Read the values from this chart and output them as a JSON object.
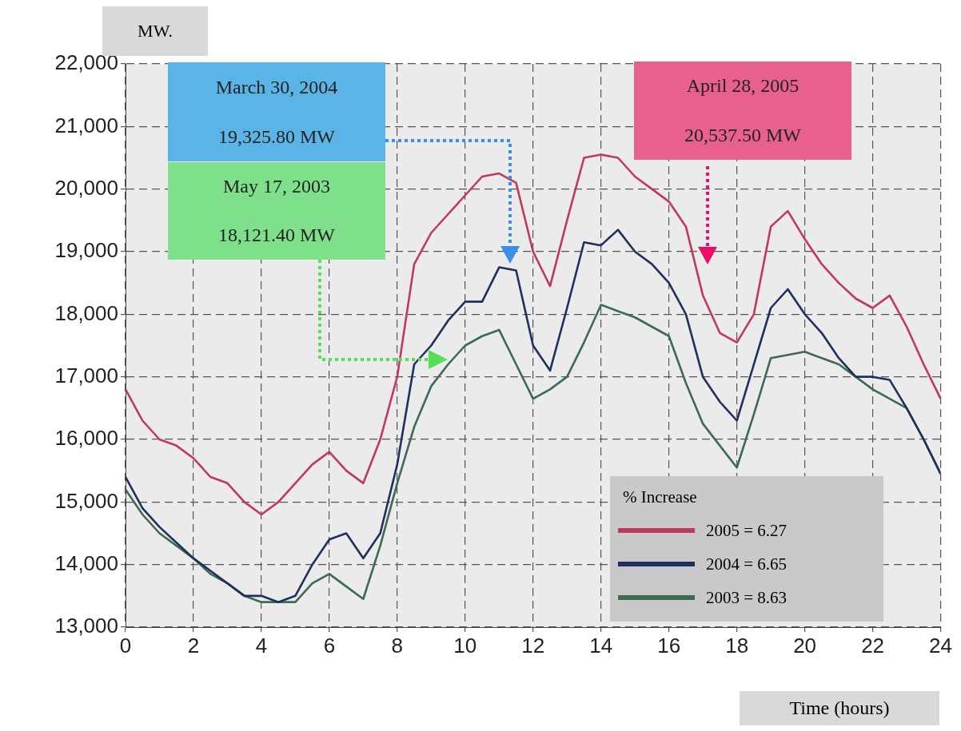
{
  "chart_data": {
    "type": "line",
    "ylabel": "MW.",
    "xlabel": "Time (hours)",
    "legend_title": "% Increase",
    "legend": "bottom right",
    "grid": true,
    "marker": "none",
    "x": [
      0,
      0.5,
      1,
      1.5,
      2,
      2.5,
      3,
      3.5,
      4,
      4.5,
      5,
      5.5,
      6,
      6.5,
      7,
      7.5,
      8,
      8.5,
      9,
      9.5,
      10,
      10.5,
      11,
      11.5,
      12,
      12.5,
      13,
      13.5,
      14,
      14.5,
      15,
      15.5,
      16,
      16.5,
      17,
      17.5,
      18,
      18.5,
      19,
      19.5,
      20,
      20.5,
      21,
      21.5,
      22,
      22.5,
      23,
      23.5,
      24
    ],
    "xlim": [
      0,
      24
    ],
    "xticks": [
      0,
      2,
      4,
      6,
      8,
      10,
      12,
      14,
      16,
      18,
      20,
      22,
      24
    ],
    "ylim": [
      13000,
      22000
    ],
    "yticks": [
      {
        "value": 13000,
        "label": "13,000"
      },
      {
        "value": 14000,
        "label": "14,000"
      },
      {
        "value": 15000,
        "label": "15,000"
      },
      {
        "value": 16000,
        "label": "16,000"
      },
      {
        "value": 17000,
        "label": "17,000"
      },
      {
        "value": 18000,
        "label": "18,000"
      },
      {
        "value": 19000,
        "label": "19,000"
      },
      {
        "value": 20000,
        "label": "20,000"
      },
      {
        "value": 21000,
        "label": "21,000"
      },
      {
        "value": 22000,
        "label": "22,000"
      }
    ],
    "series": [
      {
        "name": "2005 = 6.27",
        "color": "#c0395a",
        "values": [
          16800,
          16300,
          16000,
          15900,
          15700,
          15400,
          15300,
          15000,
          14800,
          15000,
          15300,
          15600,
          15800,
          15500,
          15300,
          16000,
          17000,
          18800,
          19300,
          19600,
          19900,
          20200,
          20250,
          20100,
          19000,
          18450,
          19500,
          20500,
          20550,
          20500,
          20200,
          20000,
          19800,
          19400,
          18300,
          17700,
          17550,
          18000,
          19400,
          19650,
          19200,
          18800,
          18500,
          18250,
          18100,
          18300,
          17800,
          17200,
          16650
        ]
      },
      {
        "name": "2004 = 6.65",
        "color": "#1f2f5e",
        "values": [
          15400,
          14900,
          14600,
          14350,
          14100,
          13900,
          13700,
          13500,
          13500,
          13400,
          13500,
          14000,
          14400,
          14500,
          14100,
          14500,
          15600,
          17200,
          17500,
          17900,
          18200,
          18200,
          18750,
          18700,
          17500,
          17100,
          18100,
          19150,
          19100,
          19350,
          19000,
          18800,
          18500,
          18000,
          17000,
          16600,
          16300,
          17200,
          18100,
          18400,
          18000,
          17700,
          17300,
          17000,
          17000,
          16950,
          16500,
          16000,
          15450
        ]
      },
      {
        "name": "2003 = 8.63",
        "color": "#3c6b4e",
        "values": [
          15200,
          14800,
          14500,
          14300,
          14100,
          13850,
          13700,
          13500,
          13400,
          13400,
          13400,
          13700,
          13850,
          13650,
          13450,
          14300,
          15300,
          16200,
          16850,
          17200,
          17500,
          17650,
          17750,
          17200,
          16650,
          16800,
          17000,
          17550,
          18150,
          18050,
          17950,
          17800,
          17650,
          16900,
          16250,
          15900,
          15550,
          16400,
          17300,
          17350,
          17400,
          17300,
          17200,
          17000,
          16800,
          16650,
          16500,
          16000,
          15450
        ]
      }
    ],
    "annotations": [
      "March 30, 2004",
      "19,325.80 MW",
      "May 17, 2003",
      "18,121.40 MW",
      "April 28, 2005",
      "20,537.50 MW"
    ]
  }
}
